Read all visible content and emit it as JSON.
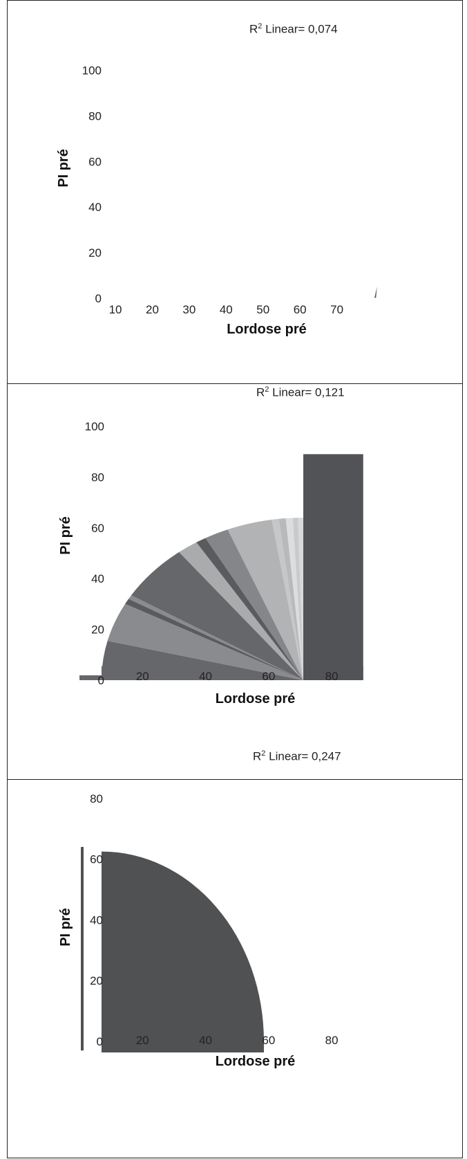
{
  "chart_data": [
    {
      "type": "scatter",
      "r2_label": "R",
      "r2_sup": "2",
      "r2_text": " Linear= 0,074",
      "xlabel": "Lordose pré",
      "ylabel": "PI pré",
      "xticks": [
        "10",
        "20",
        "30",
        "40",
        "50",
        "60",
        "70"
      ],
      "yticks": [
        "0",
        "20",
        "40",
        "60",
        "80",
        "100"
      ],
      "xlim": [
        7,
        80
      ],
      "ylim": [
        0,
        105
      ],
      "grid": false,
      "shapes": [
        {
          "kind": "wedge",
          "points": [
            [
              80.2,
              0.2
            ],
            [
              80.9,
              5.0
            ],
            [
              80.6,
              0.2
            ]
          ],
          "color": "#555555"
        }
      ]
    },
    {
      "type": "scatter",
      "r2_label": "R",
      "r2_sup": "2",
      "r2_text": " Linear= 0,121",
      "xlabel": "Lordose pré",
      "ylabel": "PI pré",
      "xticks": [
        "20",
        "40",
        "60",
        "80"
      ],
      "yticks": [
        "0",
        "20",
        "40",
        "60",
        "80",
        "100"
      ],
      "xlim": [
        0,
        94
      ],
      "ylim": [
        0,
        100
      ],
      "grid": false,
      "fan": {
        "center": [
          71,
          0
        ],
        "radius": 64,
        "x_start": 7,
        "bottom_strip": [
          0,
          7
        ],
        "right_block": {
          "x_end": 90,
          "top": 89,
          "color": "#525356"
        },
        "rays": [
          {
            "to": 166,
            "color": "#66676b"
          },
          {
            "to": 152,
            "color": "#8a8b8e"
          },
          {
            "to": 150,
            "color": "#5a5b5e"
          },
          {
            "to": 148.5,
            "color": "#8a8b8e"
          },
          {
            "to": 128,
            "color": "#66676b"
          },
          {
            "to": 122,
            "color": "#aaabad"
          },
          {
            "to": 119,
            "color": "#5a5b5e"
          },
          {
            "to": 112,
            "color": "#85868a"
          },
          {
            "to": 99,
            "color": "#b2b3b5"
          },
          {
            "to": 97,
            "color": "#c6c7c9"
          },
          {
            "to": 95,
            "color": "#b8b9bb"
          },
          {
            "to": 93,
            "color": "#dcdddf"
          },
          {
            "to": 91.5,
            "color": "#c9cacc"
          },
          {
            "to": 90,
            "color": "#d8d9db"
          }
        ]
      }
    },
    {
      "type": "scatter",
      "r2_label": "R",
      "r2_sup": "2",
      "r2_text": " Linear= 0,247",
      "xlabel": "Lordose pré",
      "ylabel": "PI pré",
      "xticks": [
        "20",
        "40",
        "60",
        "80"
      ],
      "yticks": [
        "0",
        "20",
        "40",
        "60",
        "80"
      ],
      "xlim": [
        0,
        94
      ],
      "ylim": [
        0,
        82
      ],
      "grid": false,
      "quarter_disc": {
        "center": [
          7,
          0
        ],
        "radius_x": 51.5,
        "radius_y": 62.5,
        "color": "#505153"
      },
      "y_axis_bar": {
        "from": -3,
        "to": 64,
        "color": "#505153"
      }
    }
  ]
}
